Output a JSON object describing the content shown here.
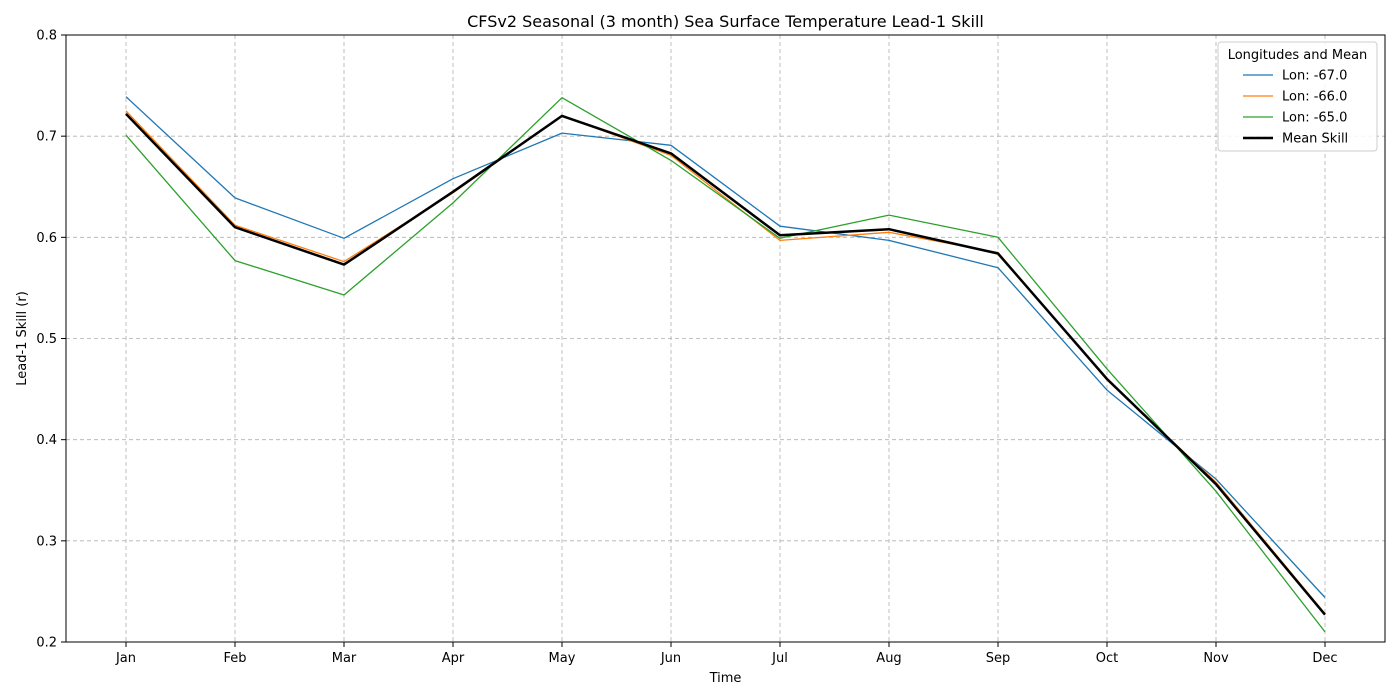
{
  "chart_data": {
    "type": "line",
    "title": "CFSv2 Seasonal (3 month) Sea Surface Temperature Lead-1 Skill",
    "xlabel": "Time",
    "ylabel": "Lead-1 Skill (r)",
    "categories": [
      "Jan",
      "Feb",
      "Mar",
      "Apr",
      "May",
      "Jun",
      "Jul",
      "Aug",
      "Sep",
      "Oct",
      "Nov",
      "Dec"
    ],
    "ylim": [
      0.2,
      0.8
    ],
    "yticks": [
      "0.2",
      "0.3",
      "0.4",
      "0.5",
      "0.6",
      "0.7",
      "0.8"
    ],
    "grid": true,
    "legend_title": "Longitudes and Mean",
    "legend_position": "top-right",
    "series": [
      {
        "name": "Lon: -67.0",
        "color": "#1f77b4",
        "line_width": "thin",
        "values": [
          0.739,
          0.639,
          0.599,
          0.658,
          0.703,
          0.691,
          0.611,
          0.597,
          0.57,
          0.449,
          0.361,
          0.244
        ]
      },
      {
        "name": "Lon: -66.0",
        "color": "#ff7f0e",
        "line_width": "thin",
        "values": [
          0.725,
          0.612,
          0.576,
          0.644,
          0.72,
          0.681,
          0.597,
          0.605,
          0.585,
          0.459,
          0.358,
          0.228
        ]
      },
      {
        "name": "Lon: -65.0",
        "color": "#2ca02c",
        "line_width": "thin",
        "values": [
          0.701,
          0.577,
          0.543,
          0.634,
          0.738,
          0.676,
          0.599,
          0.622,
          0.6,
          0.47,
          0.349,
          0.21
        ]
      },
      {
        "name": "Mean Skill",
        "color": "#000000",
        "line_width": "thick",
        "values": [
          0.722,
          0.61,
          0.573,
          0.645,
          0.72,
          0.683,
          0.602,
          0.608,
          0.584,
          0.46,
          0.356,
          0.227
        ]
      }
    ]
  }
}
